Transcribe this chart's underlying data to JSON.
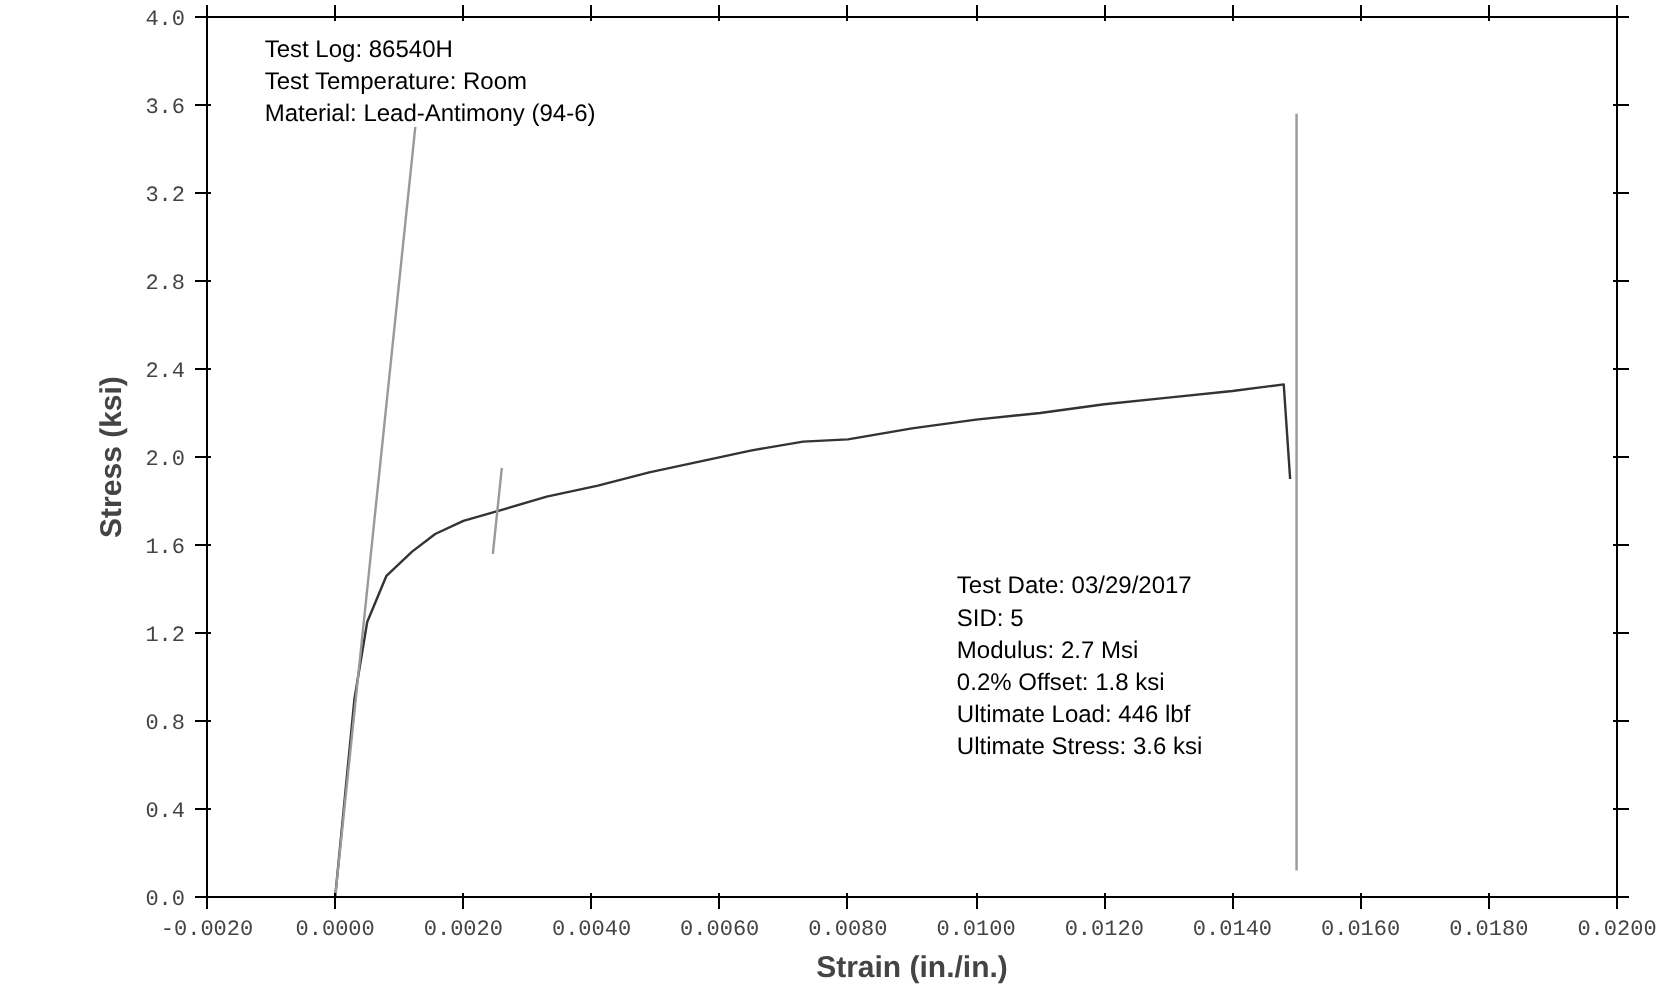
{
  "chart_data": {
    "type": "line",
    "xlabel": "Strain (in./in.)",
    "ylabel": "Stress (ksi)",
    "xlim": [
      -0.002,
      0.02
    ],
    "ylim": [
      0,
      4.0
    ],
    "xticks": [
      {
        "value": -0.002,
        "label": "-0.0020"
      },
      {
        "value": 0,
        "label": "0.0000"
      },
      {
        "value": 0.002,
        "label": "0.0020"
      },
      {
        "value": 0.004,
        "label": "0.0040"
      },
      {
        "value": 0.006,
        "label": "0.0060"
      },
      {
        "value": 0.008,
        "label": "0.0080"
      },
      {
        "value": 0.01,
        "label": "0.0100"
      },
      {
        "value": 0.012,
        "label": "0.0120"
      },
      {
        "value": 0.014,
        "label": "0.0140"
      },
      {
        "value": 0.016,
        "label": "0.0160"
      },
      {
        "value": 0.018,
        "label": "0.0180"
      },
      {
        "value": 0.02,
        "label": "0.0200"
      }
    ],
    "yticks": [
      {
        "value": 0,
        "label": "0.0"
      },
      0.4,
      0.8,
      1.2,
      1.6,
      {
        "value": 2,
        "label": "2.0"
      },
      2.4,
      2.8,
      3.2,
      3.6,
      {
        "value": 4,
        "label": "4.0"
      }
    ],
    "grid": false,
    "marker": "none",
    "line_style": "solid",
    "series": [
      {
        "color": "#333333",
        "x": [
          0,
          0.0001,
          0.0003,
          0.0005,
          0.0008,
          0.0012,
          0.00156,
          0.002,
          0.0026,
          0.0033,
          0.0041,
          0.0049,
          0.0057,
          0.0065,
          0.0073,
          0.008,
          0.009,
          0.01,
          0.011,
          0.012,
          0.013,
          0.014,
          0.0148,
          0.0149
        ],
        "values": [
          0,
          0.3,
          0.9,
          1.25,
          1.46,
          1.57,
          1.65,
          1.71,
          1.76,
          1.82,
          1.87,
          1.93,
          1.98,
          2.03,
          2.07,
          2.08,
          2.13,
          2.17,
          2.2,
          2.24,
          2.27,
          2.3,
          2.33,
          1.9
        ]
      },
      {
        "color": "#999999",
        "x": [
          0,
          0.00125
        ],
        "values": [
          0,
          3.5
        ]
      },
      {
        "color": "#999999",
        "x": [
          0.00246,
          0.0026
        ],
        "values": [
          1.56,
          1.95
        ]
      },
      {
        "color": "#999999",
        "x": [
          0.015,
          0.015
        ],
        "values": [
          0.12,
          3.56
        ]
      }
    ],
    "annotations": [
      "Test Log: 86540H\nTest Temperature: Room\nMaterial: Lead-Antimony (94-6)",
      "Test Date: 03/29/2017\nSID: 5\nModulus: 2.7 Msi\n0.2% Offset: 1.8 ksi\nUltimate Load: 446 lbf\nUltimate Stress: 3.6 ksi"
    ]
  }
}
